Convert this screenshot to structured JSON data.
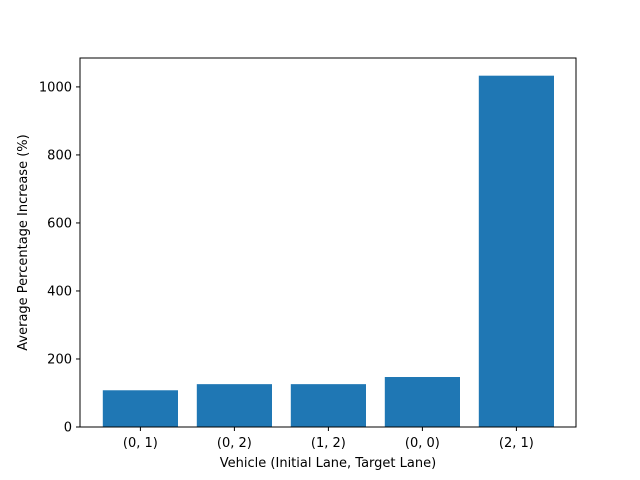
{
  "chart_data": {
    "type": "bar",
    "title": "",
    "xlabel": "Vehicle (Initial Lane, Target Lane)",
    "ylabel": "Average Percentage Increase (%)",
    "categories": [
      "(0, 1)",
      "(0, 2)",
      "(1, 2)",
      "(0, 0)",
      "(2, 1)"
    ],
    "values": [
      108,
      126,
      126,
      147,
      1033
    ],
    "ylim": [
      0,
      1085
    ],
    "yticks": [
      0,
      200,
      400,
      600,
      800,
      1000
    ],
    "grid": false,
    "colors": {
      "bar": "#1f77b4",
      "axis": "#000000"
    }
  }
}
